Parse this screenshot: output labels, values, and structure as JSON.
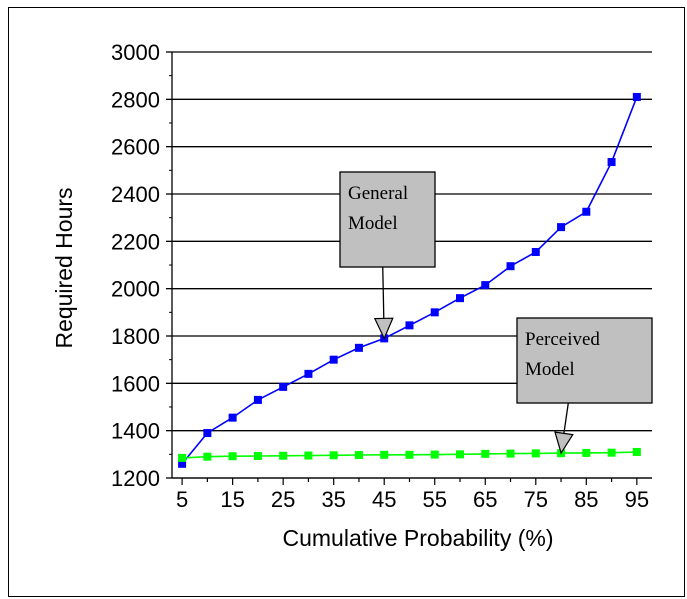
{
  "chart_data": {
    "type": "line",
    "xlabel": "Cumulative Probability (%)",
    "ylabel": "Required Hours",
    "x": [
      5,
      10,
      15,
      20,
      25,
      30,
      35,
      40,
      45,
      50,
      55,
      60,
      65,
      70,
      75,
      80,
      85,
      90,
      95
    ],
    "xticks": [
      5,
      15,
      25,
      35,
      45,
      55,
      65,
      75,
      85,
      95
    ],
    "xlim": [
      3,
      98
    ],
    "ylim": [
      1200,
      3000
    ],
    "yticks": [
      1200,
      1400,
      1600,
      1800,
      2000,
      2200,
      2400,
      2600,
      2800,
      3000
    ],
    "grid": "horizontal",
    "legend": "none",
    "series": [
      {
        "color": "#0000ff",
        "values": [
          1260,
          1390,
          1455,
          1530,
          1585,
          1640,
          1700,
          1750,
          1790,
          1845,
          1900,
          1960,
          2015,
          2095,
          2155,
          2260,
          2325,
          2535,
          2810
        ]
      },
      {
        "color": "#00ff00",
        "values": [
          1285,
          1290,
          1292,
          1293,
          1294,
          1295,
          1296,
          1297,
          1298,
          1298,
          1299,
          1300,
          1302,
          1303,
          1304,
          1305,
          1306,
          1307,
          1310
        ]
      }
    ],
    "annotations": [
      {
        "lines": [
          "General",
          "Model"
        ],
        "points_to": {
          "x": 45,
          "y": 1790
        }
      },
      {
        "lines": [
          "Perceived",
          "Model"
        ],
        "points_to": {
          "x": 80,
          "y": 1305
        }
      }
    ]
  }
}
